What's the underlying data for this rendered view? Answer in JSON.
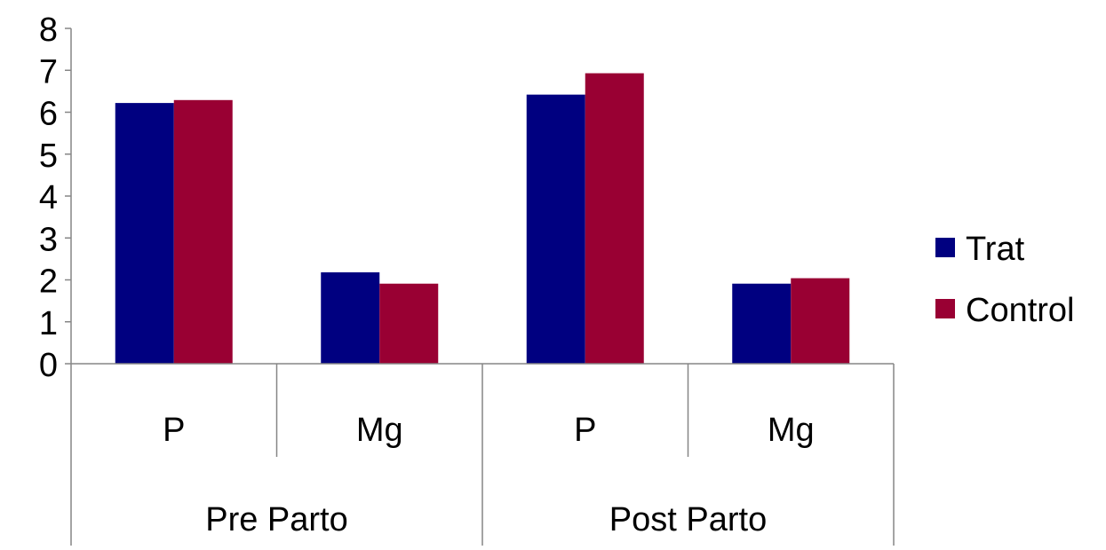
{
  "chart_data": {
    "type": "bar",
    "title": "",
    "xlabel": "",
    "ylabel": "",
    "ylim": [
      0,
      8
    ],
    "yticks": [
      "0",
      "1",
      "2",
      "3",
      "4",
      "5",
      "6",
      "7",
      "8"
    ],
    "groups": [
      {
        "label": "Pre Parto",
        "categories": [
          "P",
          "Mg"
        ]
      },
      {
        "label": "Post Parto",
        "categories": [
          "P",
          "Mg"
        ]
      }
    ],
    "categories": [
      "P",
      "Mg",
      "P",
      "Mg"
    ],
    "series": [
      {
        "name": "Trat",
        "color": "#000080",
        "values": [
          6.22,
          2.18,
          6.42,
          1.91
        ]
      },
      {
        "name": "Control",
        "color": "#990033",
        "values": [
          6.29,
          1.91,
          6.93,
          2.04
        ]
      }
    ],
    "grid": false,
    "legend_position": "right"
  }
}
